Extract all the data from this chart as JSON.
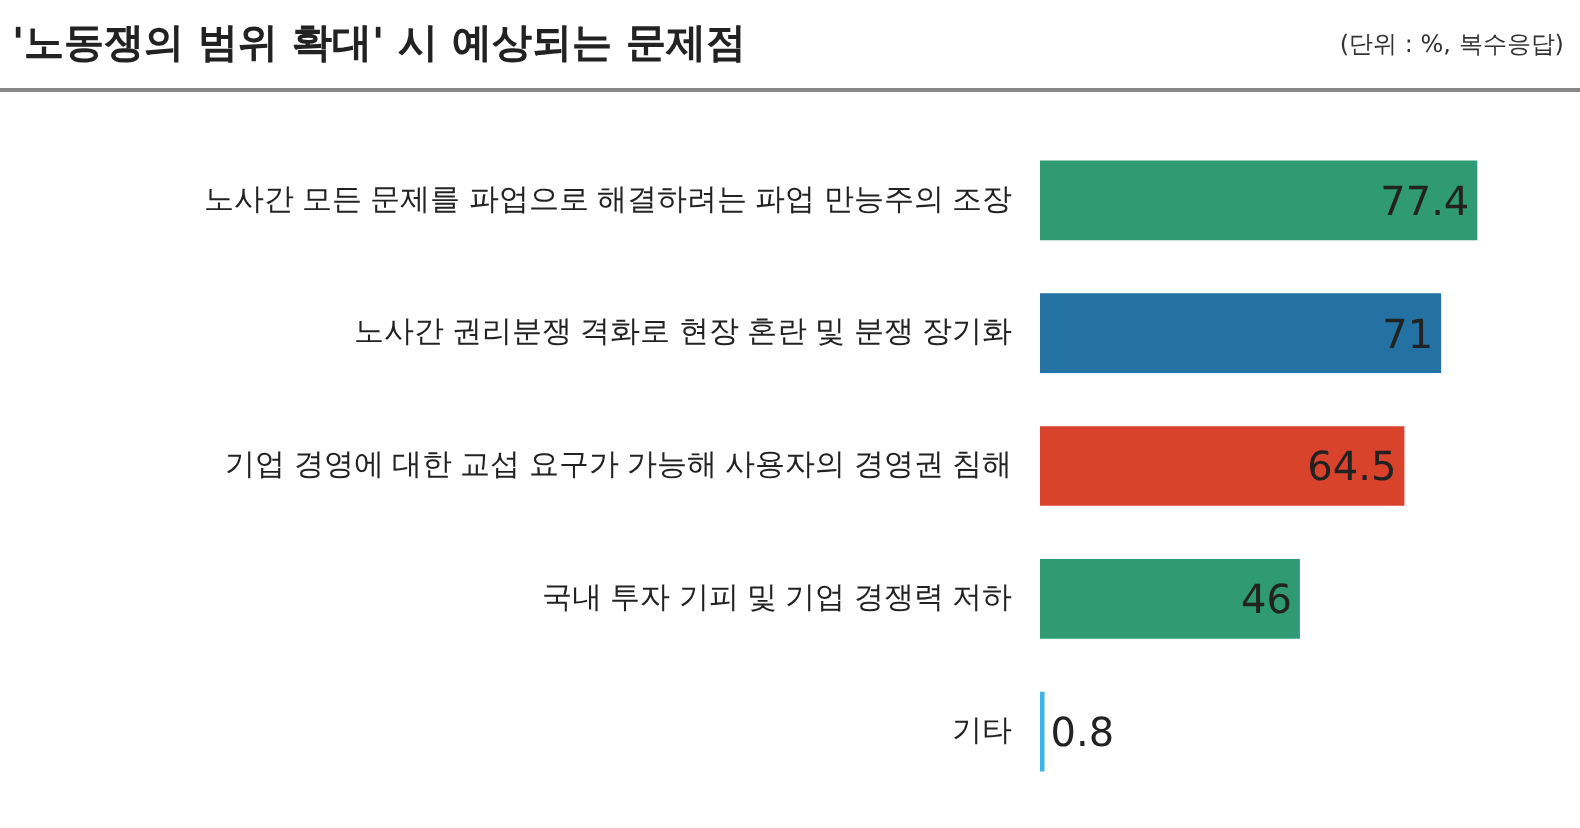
{
  "chart_data": {
    "type": "bar",
    "orientation": "horizontal",
    "title": "'노동쟁의 범위 확대' 시 예상되는 문제점",
    "annotations": [
      "(단위 : %, 복수응답)"
    ],
    "categories": [
      "노사간 모든 문제를 파업으로 해결하려는 파업 만능주의 조장",
      "노사간 권리분쟁 격화로 현장 혼란 및 분쟁 장기화",
      "기업 경영에 대한 교섭 요구가 가능해 사용자의 경영권 침해",
      "국내 투자 기피 및 기업 경쟁력 저하",
      "기타"
    ],
    "values": [
      77.4,
      71,
      64.5,
      46,
      0.8
    ],
    "colors": [
      "#2f9a74",
      "#2472a4",
      "#d9432c",
      "#2f9a74",
      "#3bb3e6"
    ],
    "data_labels": true,
    "grid": false,
    "legend": false
  }
}
